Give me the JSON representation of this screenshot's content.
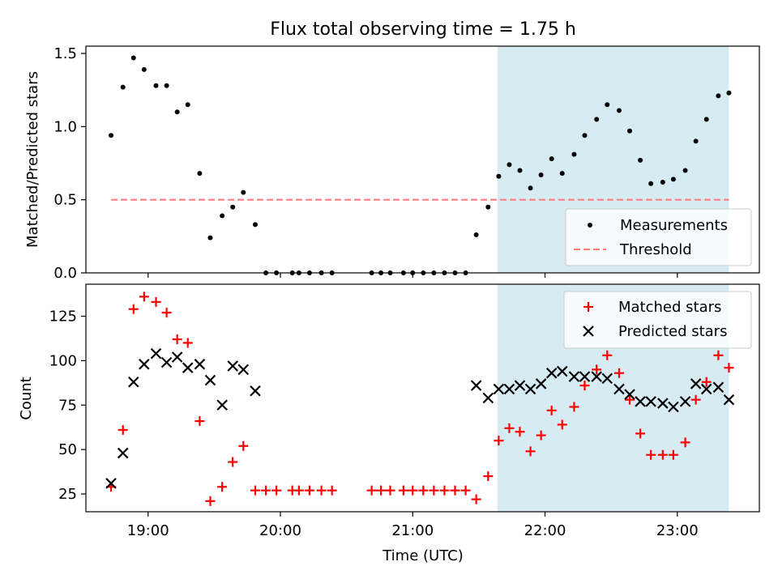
{
  "chart_data": {
    "title": "Flux total observing time = 1.75 h",
    "xlabel": "Time (UTC)",
    "x_units": "decimal hours UTC",
    "xlim": [
      18.53,
      23.62
    ],
    "xticks": [
      {
        "value": 19,
        "label": "19:00"
      },
      {
        "value": 20,
        "label": "20:00"
      },
      {
        "value": 21,
        "label": "21:00"
      },
      {
        "value": 22,
        "label": "22:00"
      },
      {
        "value": 23,
        "label": "23:00"
      }
    ],
    "shaded_region": {
      "x_start": 21.64,
      "x_end": 23.39,
      "color": "#add8e6"
    },
    "panels": [
      {
        "type": "scatter",
        "ylabel": "Matched/Predicted stars",
        "ylim": [
          0,
          1.55
        ],
        "yticks": [
          {
            "value": 0,
            "label": "0.0"
          },
          {
            "value": 0.5,
            "label": "0.5"
          },
          {
            "value": 1.0,
            "label": "1.0"
          },
          {
            "value": 1.5,
            "label": "1.5"
          }
        ],
        "legend_position": "lower-right",
        "series": [
          {
            "name": "Measurements",
            "marker": "dot",
            "color": "#000000",
            "points": [
              [
                18.72,
                0.94
              ],
              [
                18.81,
                1.27
              ],
              [
                18.89,
                1.47
              ],
              [
                18.97,
                1.39
              ],
              [
                19.06,
                1.28
              ],
              [
                19.14,
                1.28
              ],
              [
                19.22,
                1.1
              ],
              [
                19.3,
                1.15
              ],
              [
                19.39,
                0.68
              ],
              [
                19.47,
                0.24
              ],
              [
                19.56,
                0.39
              ],
              [
                19.64,
                0.45
              ],
              [
                19.72,
                0.55
              ],
              [
                19.81,
                0.33
              ],
              [
                19.89,
                0.0
              ],
              [
                19.97,
                0.0
              ],
              [
                20.09,
                0.0
              ],
              [
                20.14,
                0.0
              ],
              [
                20.22,
                0.0
              ],
              [
                20.31,
                0.0
              ],
              [
                20.39,
                0.0
              ],
              [
                20.69,
                0.0
              ],
              [
                20.76,
                0.0
              ],
              [
                20.83,
                0.0
              ],
              [
                20.93,
                0.0
              ],
              [
                21.0,
                0.0
              ],
              [
                21.08,
                0.0
              ],
              [
                21.16,
                0.0
              ],
              [
                21.24,
                0.0
              ],
              [
                21.32,
                0.0
              ],
              [
                21.4,
                0.0
              ],
              [
                21.48,
                0.26
              ],
              [
                21.57,
                0.45
              ],
              [
                21.65,
                0.66
              ],
              [
                21.73,
                0.74
              ],
              [
                21.81,
                0.7
              ],
              [
                21.89,
                0.58
              ],
              [
                21.97,
                0.67
              ],
              [
                22.05,
                0.78
              ],
              [
                22.13,
                0.68
              ],
              [
                22.22,
                0.81
              ],
              [
                22.3,
                0.94
              ],
              [
                22.39,
                1.05
              ],
              [
                22.47,
                1.15
              ],
              [
                22.56,
                1.11
              ],
              [
                22.64,
                0.97
              ],
              [
                22.72,
                0.77
              ],
              [
                22.8,
                0.61
              ],
              [
                22.89,
                0.62
              ],
              [
                22.97,
                0.64
              ],
              [
                23.06,
                0.7
              ],
              [
                23.14,
                0.9
              ],
              [
                23.22,
                1.05
              ],
              [
                23.31,
                1.21
              ],
              [
                23.39,
                1.23
              ]
            ]
          },
          {
            "name": "Threshold",
            "style": "dashed-line",
            "color": "#ff7f7f",
            "points": [
              [
                18.72,
                0.5
              ],
              [
                23.39,
                0.5
              ]
            ]
          }
        ]
      },
      {
        "type": "scatter",
        "ylabel": "Count",
        "ylim": [
          15,
          143
        ],
        "yticks": [
          {
            "value": 25,
            "label": "25"
          },
          {
            "value": 50,
            "label": "50"
          },
          {
            "value": 75,
            "label": "75"
          },
          {
            "value": 100,
            "label": "100"
          },
          {
            "value": 125,
            "label": "125"
          }
        ],
        "legend_position": "upper-right",
        "series": [
          {
            "name": "Matched stars",
            "marker": "plus",
            "color": "#ff0000",
            "points": [
              [
                18.72,
                29
              ],
              [
                18.81,
                61
              ],
              [
                18.89,
                129
              ],
              [
                18.97,
                136
              ],
              [
                19.06,
                133
              ],
              [
                19.14,
                127
              ],
              [
                19.22,
                112
              ],
              [
                19.3,
                110
              ],
              [
                19.39,
                66
              ],
              [
                19.47,
                21
              ],
              [
                19.56,
                29
              ],
              [
                19.64,
                43
              ],
              [
                19.72,
                52
              ],
              [
                19.81,
                27
              ],
              [
                19.89,
                27
              ],
              [
                19.97,
                27
              ],
              [
                20.09,
                27
              ],
              [
                20.14,
                27
              ],
              [
                20.22,
                27
              ],
              [
                20.31,
                27
              ],
              [
                20.39,
                27
              ],
              [
                20.69,
                27
              ],
              [
                20.76,
                27
              ],
              [
                20.83,
                27
              ],
              [
                20.93,
                27
              ],
              [
                21.0,
                27
              ],
              [
                21.08,
                27
              ],
              [
                21.16,
                27
              ],
              [
                21.24,
                27
              ],
              [
                21.32,
                27
              ],
              [
                21.4,
                27
              ],
              [
                21.48,
                22
              ],
              [
                21.57,
                35
              ],
              [
                21.65,
                55
              ],
              [
                21.73,
                62
              ],
              [
                21.81,
                60
              ],
              [
                21.89,
                49
              ],
              [
                21.97,
                58
              ],
              [
                22.05,
                72
              ],
              [
                22.13,
                64
              ],
              [
                22.22,
                74
              ],
              [
                22.3,
                86
              ],
              [
                22.39,
                95
              ],
              [
                22.47,
                103
              ],
              [
                22.56,
                93
              ],
              [
                22.64,
                78
              ],
              [
                22.72,
                59
              ],
              [
                22.8,
                47
              ],
              [
                22.89,
                47
              ],
              [
                22.97,
                47
              ],
              [
                23.06,
                54
              ],
              [
                23.14,
                78
              ],
              [
                23.22,
                88
              ],
              [
                23.31,
                103
              ],
              [
                23.39,
                96
              ]
            ]
          },
          {
            "name": "Predicted stars",
            "marker": "x",
            "color": "#000000",
            "points": [
              [
                18.72,
                31
              ],
              [
                18.81,
                48
              ],
              [
                18.89,
                88
              ],
              [
                18.97,
                98
              ],
              [
                19.06,
                104
              ],
              [
                19.14,
                99
              ],
              [
                19.22,
                102
              ],
              [
                19.3,
                96
              ],
              [
                19.39,
                98
              ],
              [
                19.47,
                89
              ],
              [
                19.56,
                75
              ],
              [
                19.64,
                97
              ],
              [
                19.72,
                95
              ],
              [
                19.81,
                83
              ],
              [
                21.48,
                86
              ],
              [
                21.57,
                79
              ],
              [
                21.65,
                84
              ],
              [
                21.73,
                84
              ],
              [
                21.81,
                86
              ],
              [
                21.89,
                84
              ],
              [
                21.97,
                87
              ],
              [
                22.05,
                93
              ],
              [
                22.13,
                94
              ],
              [
                22.22,
                91
              ],
              [
                22.3,
                91
              ],
              [
                22.39,
                91
              ],
              [
                22.47,
                90
              ],
              [
                22.56,
                84
              ],
              [
                22.64,
                81
              ],
              [
                22.72,
                77
              ],
              [
                22.8,
                77
              ],
              [
                22.89,
                76
              ],
              [
                22.97,
                74
              ],
              [
                23.06,
                77
              ],
              [
                23.14,
                87
              ],
              [
                23.22,
                84
              ],
              [
                23.31,
                85
              ],
              [
                23.39,
                78
              ]
            ]
          }
        ]
      }
    ]
  }
}
